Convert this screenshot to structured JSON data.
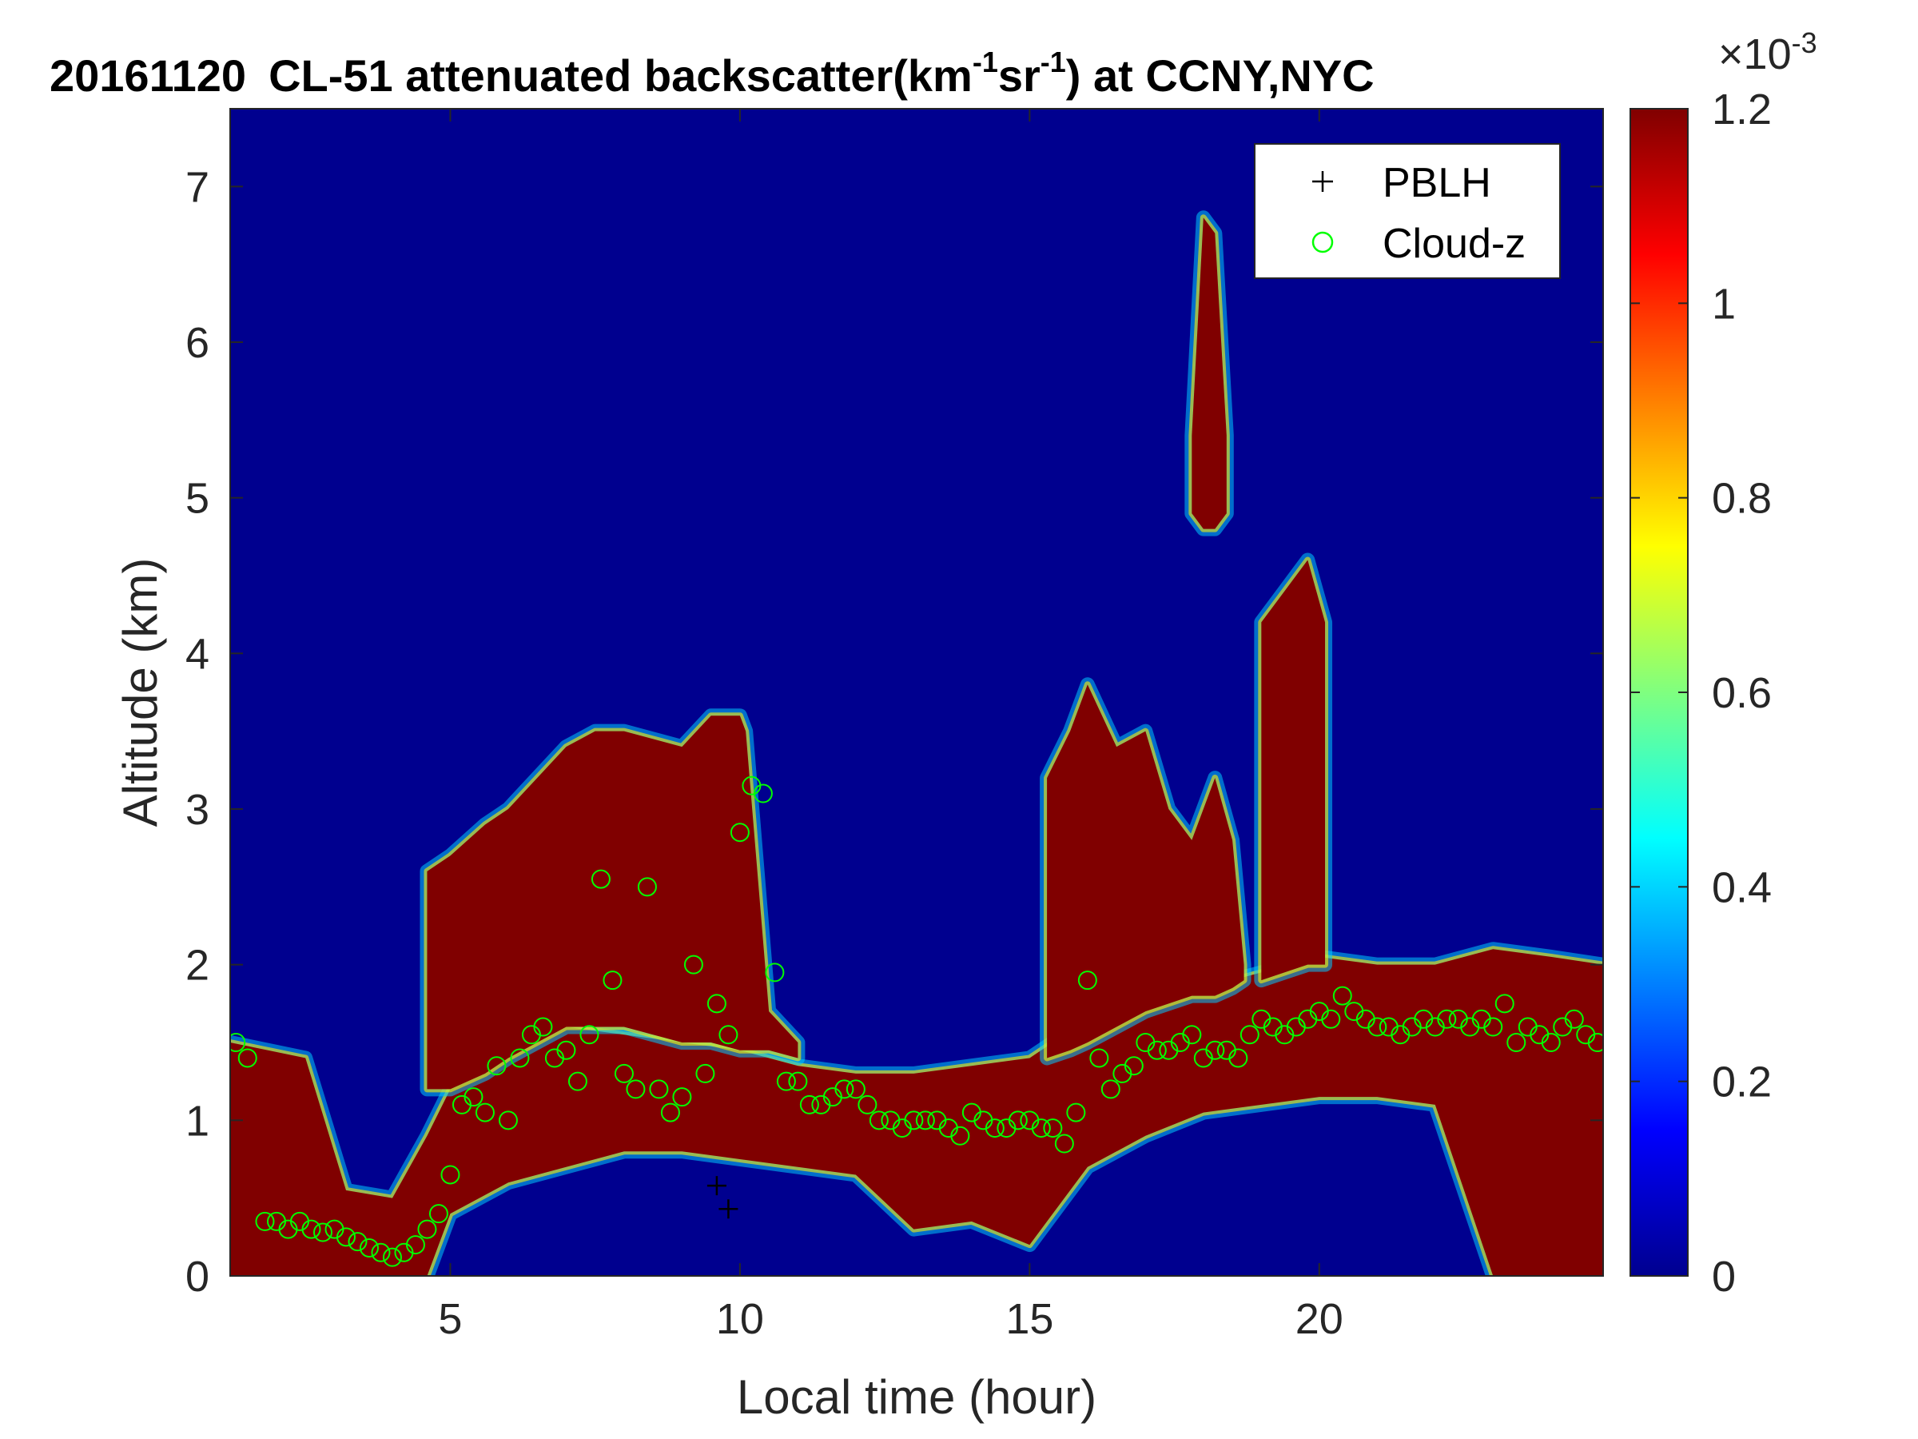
{
  "chart_data": {
    "type": "heatmap",
    "title": {
      "date": "20161120",
      "main": "CL-51 attenuated backscatter(km",
      "sup1": "-1",
      "mid": "sr",
      "sup2": "-1",
      "end": ") at CCNY,NYC"
    },
    "xlabel": "Local time (hour)",
    "ylabel": "Altitude (km)",
    "xlim": [
      1.2,
      24.9
    ],
    "ylim": [
      0,
      7.5
    ],
    "xticks": [
      "5",
      "10",
      "15",
      "20"
    ],
    "yticks": [
      "0",
      "1",
      "2",
      "3",
      "4",
      "5",
      "6",
      "7"
    ],
    "colorbar": {
      "colormap": "jet",
      "clim": [
        0,
        1.2
      ],
      "ticks": [
        "0",
        "0.2",
        "0.4",
        "0.6",
        "0.8",
        "1",
        "1.2"
      ],
      "exponent_base": "×10",
      "exponent": "-3"
    },
    "legend": {
      "position": "top-right",
      "entries": [
        {
          "label": "PBLH",
          "marker": "plus",
          "color": "#000000"
        },
        {
          "label": "Cloud-z",
          "marker": "circle",
          "color": "#00ff00"
        }
      ]
    },
    "background_color": "#00008f",
    "saturated_color": "#800000",
    "layers": [
      {
        "name": "aerosol-layer",
        "times": [
          1.2,
          2.5,
          3.2,
          4.0,
          4.6,
          5.0,
          6.0,
          7.0,
          8.0,
          9.0,
          10.0,
          11.0,
          12.0,
          13.0,
          14.0,
          15.0,
          16.0,
          17.0,
          18.0,
          19.0,
          20.0,
          21.0,
          22.0,
          23.0,
          24.0,
          24.9
        ],
        "top": [
          1.5,
          1.4,
          0.55,
          0.5,
          0.9,
          1.2,
          1.55,
          1.6,
          1.55,
          1.5,
          1.45,
          1.35,
          1.3,
          1.3,
          1.35,
          1.4,
          1.65,
          1.75,
          1.85,
          1.95,
          2.05,
          2.0,
          2.0,
          2.1,
          2.05,
          2.0
        ],
        "bottom": [
          0,
          0,
          0,
          0,
          0,
          0.4,
          0.6,
          0.7,
          0.8,
          0.8,
          0.75,
          0.7,
          0.65,
          0.3,
          0.35,
          0.2,
          0.7,
          0.9,
          1.05,
          1.1,
          1.15,
          1.15,
          1.1,
          0,
          0,
          0
        ]
      },
      {
        "name": "upper-layer",
        "times": [
          4.6,
          5.0,
          5.6,
          6.0,
          6.5,
          7.0,
          7.5,
          8.0,
          8.5,
          9.0,
          9.5,
          10.0,
          10.1,
          10.5,
          11.0
        ],
        "top": [
          2.6,
          2.7,
          2.9,
          3.0,
          3.2,
          3.4,
          3.5,
          3.5,
          3.45,
          3.4,
          3.6,
          3.6,
          3.5,
          1.7,
          1.5
        ],
        "bottom": [
          1.2,
          1.2,
          1.3,
          1.4,
          1.5,
          1.6,
          1.6,
          1.6,
          1.55,
          1.5,
          1.5,
          1.45,
          1.45,
          1.45,
          1.4
        ]
      },
      {
        "name": "storm-column-1",
        "times": [
          15.3,
          15.7,
          16.0,
          16.5,
          17.0,
          17.4,
          17.8,
          18.2,
          18.5,
          18.7
        ],
        "top": [
          3.2,
          3.5,
          3.8,
          3.4,
          3.5,
          3.0,
          2.8,
          3.2,
          2.8,
          2.0
        ],
        "bottom": [
          1.4,
          1.45,
          1.5,
          1.6,
          1.7,
          1.75,
          1.8,
          1.8,
          1.85,
          1.9
        ]
      },
      {
        "name": "storm-column-2",
        "times": [
          19.0,
          19.4,
          19.8,
          20.1
        ],
        "top": [
          4.2,
          4.4,
          4.6,
          4.2
        ],
        "bottom": [
          1.9,
          1.95,
          2.0,
          2.0
        ]
      },
      {
        "name": "cloud-cell",
        "times": [
          17.8,
          18.0,
          18.2,
          18.4
        ],
        "top": [
          5.4,
          6.8,
          6.7,
          5.4
        ],
        "bottom": [
          4.9,
          4.8,
          4.8,
          4.9
        ]
      }
    ],
    "series": [
      {
        "name": "Cloud-z",
        "marker": "circle",
        "x": [
          1.3,
          1.5,
          1.8,
          2.0,
          2.2,
          2.4,
          2.6,
          2.8,
          3.0,
          3.2,
          3.4,
          3.6,
          3.8,
          4.0,
          4.2,
          4.4,
          4.6,
          4.8,
          5.0,
          5.2,
          5.4,
          5.6,
          5.8,
          6.0,
          6.2,
          6.4,
          6.6,
          6.8,
          7.0,
          7.2,
          7.4,
          7.6,
          7.8,
          8.0,
          8.2,
          8.4,
          8.6,
          8.8,
          9.0,
          9.2,
          9.4,
          9.6,
          9.8,
          10.0,
          10.2,
          10.4,
          10.6,
          10.8,
          11.0,
          11.2,
          11.4,
          11.6,
          11.8,
          12.0,
          12.2,
          12.4,
          12.6,
          12.8,
          13.0,
          13.2,
          13.4,
          13.6,
          13.8,
          14.0,
          14.2,
          14.4,
          14.6,
          14.8,
          15.0,
          15.2,
          15.4,
          15.6,
          15.8,
          16.0,
          16.2,
          16.4,
          16.6,
          16.8,
          17.0,
          17.2,
          17.4,
          17.6,
          17.8,
          18.0,
          18.2,
          18.4,
          18.6,
          18.8,
          19.0,
          19.2,
          19.4,
          19.6,
          19.8,
          20.0,
          20.2,
          20.4,
          20.6,
          20.8,
          21.0,
          21.2,
          21.4,
          21.6,
          21.8,
          22.0,
          22.2,
          22.4,
          22.6,
          22.8,
          23.0,
          23.2,
          23.4,
          23.6,
          23.8,
          24.0,
          24.2,
          24.4,
          24.6,
          24.8
        ],
        "y": [
          1.5,
          1.4,
          0.35,
          0.35,
          0.3,
          0.35,
          0.3,
          0.28,
          0.3,
          0.25,
          0.22,
          0.18,
          0.15,
          0.12,
          0.15,
          0.2,
          0.3,
          0.4,
          0.65,
          1.1,
          1.15,
          1.05,
          1.35,
          1.0,
          1.4,
          1.55,
          1.6,
          1.4,
          1.45,
          1.25,
          1.55,
          2.55,
          1.9,
          1.3,
          1.2,
          2.5,
          1.2,
          1.05,
          1.15,
          2.0,
          1.3,
          1.75,
          1.55,
          2.85,
          3.15,
          3.1,
          1.95,
          1.25,
          1.25,
          1.1,
          1.1,
          1.15,
          1.2,
          1.2,
          1.1,
          1.0,
          1.0,
          0.95,
          1.0,
          1.0,
          1.0,
          0.95,
          0.9,
          1.05,
          1.0,
          0.95,
          0.95,
          1.0,
          1.0,
          0.95,
          0.95,
          0.85,
          1.05,
          1.9,
          1.4,
          1.2,
          1.3,
          1.35,
          1.5,
          1.45,
          1.45,
          1.5,
          1.55,
          1.4,
          1.45,
          1.45,
          1.4,
          1.55,
          1.65,
          1.6,
          1.55,
          1.6,
          1.65,
          1.7,
          1.65,
          1.8,
          1.7,
          1.65,
          1.6,
          1.6,
          1.55,
          1.6,
          1.65,
          1.6,
          1.65,
          1.65,
          1.6,
          1.65,
          1.6,
          1.75,
          1.5,
          1.6,
          1.55,
          1.5,
          1.6,
          1.65,
          1.55,
          1.5
        ]
      },
      {
        "name": "PBLH",
        "marker": "plus",
        "x": [
          9.6,
          9.8
        ],
        "y": [
          0.58,
          0.43
        ]
      }
    ]
  }
}
